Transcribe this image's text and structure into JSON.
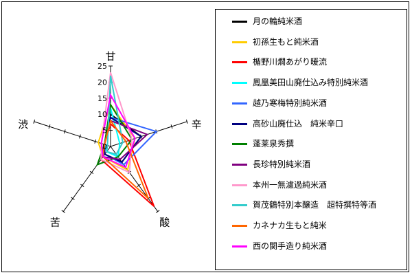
{
  "chart_data": {
    "type": "radar",
    "axes": [
      "甘",
      "辛",
      "酸",
      "苦",
      "渋"
    ],
    "radial_ticks": [
      "0",
      "5",
      "10",
      "15",
      "20",
      "25"
    ],
    "rmax": 25,
    "grid": false,
    "legend_position": "right",
    "series": [
      {
        "name": "月の輪純米酒",
        "color": "#000000",
        "values": [
          10,
          10,
          6,
          3,
          2
        ]
      },
      {
        "name": "初孫生もと純米酒",
        "color": "#FFCC00",
        "values": [
          13,
          8,
          9,
          4,
          4
        ]
      },
      {
        "name": "楯野川燗あがり暖流",
        "color": "#FF0000",
        "values": [
          7,
          6,
          23,
          5,
          2
        ]
      },
      {
        "name": "鳳凰美田山廃仕込み特別純米酒",
        "color": "#00FFFF",
        "values": [
          12,
          3,
          4,
          2,
          2
        ]
      },
      {
        "name": "越乃寒梅特別純米酒",
        "color": "#3366FF",
        "values": [
          9,
          15,
          7,
          3,
          2
        ]
      },
      {
        "name": "高砂山廃仕込　純米辛口",
        "color": "#000080",
        "values": [
          9,
          10,
          6,
          3,
          2
        ]
      },
      {
        "name": "蓬莱泉秀撰",
        "color": "#008000",
        "values": [
          13,
          7,
          4,
          7,
          2
        ]
      },
      {
        "name": "長珍特別純米酒",
        "color": "#800080",
        "values": [
          8,
          12,
          5,
          4,
          2
        ]
      },
      {
        "name": "本州一無濾過純米酒",
        "color": "#FF99CC",
        "values": [
          23,
          7,
          10,
          5,
          3
        ]
      },
      {
        "name": "賀茂鶴特別本醸造　超特撰特等酒",
        "color": "#33CCCC",
        "values": [
          22,
          4,
          3,
          2,
          1
        ]
      },
      {
        "name": "カネナカ生もと純米",
        "color": "#FF6600",
        "values": [
          8,
          5,
          20,
          4,
          2
        ]
      },
      {
        "name": "西の関手造り純米酒",
        "color": "#FF00FF",
        "values": [
          16,
          8,
          8,
          4,
          3
        ]
      }
    ]
  }
}
